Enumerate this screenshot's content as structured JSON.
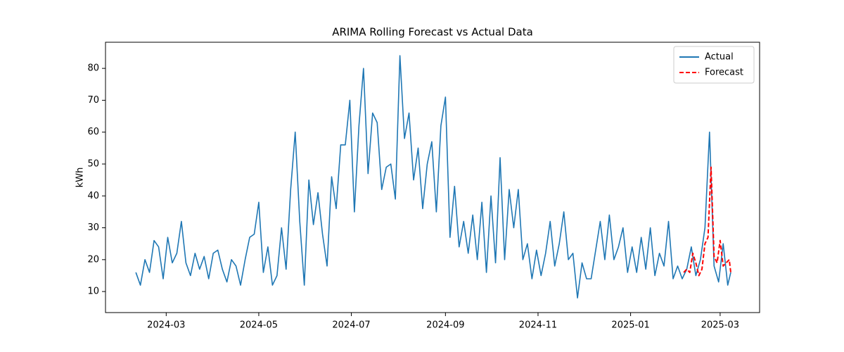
{
  "chart_data": {
    "type": "line",
    "title": "ARIMA Rolling Forecast vs Actual Data",
    "ylabel": "kWh",
    "xlim": [
      "2024-01-21",
      "2025-03-27"
    ],
    "ylim": [
      3.4,
      88.2
    ],
    "xticks": [
      {
        "value": "2024-03-01",
        "label": "2024-03"
      },
      {
        "value": "2024-05-01",
        "label": "2024-05"
      },
      {
        "value": "2024-07-01",
        "label": "2024-07"
      },
      {
        "value": "2024-09-01",
        "label": "2024-09"
      },
      {
        "value": "2024-11-01",
        "label": "2024-11"
      },
      {
        "value": "2025-01-01",
        "label": "2025-01"
      },
      {
        "value": "2025-03-01",
        "label": "2025-03"
      }
    ],
    "yticks": [
      10,
      20,
      30,
      40,
      50,
      60,
      70,
      80
    ],
    "grid": false,
    "legend": "upper right",
    "series": [
      {
        "name": "Actual",
        "color": "#1f77b4",
        "dash": "solid",
        "x": [
          "2024-02-10",
          "2024-02-13",
          "2024-02-16",
          "2024-02-19",
          "2024-02-22",
          "2024-02-25",
          "2024-02-28",
          "2024-03-02",
          "2024-03-05",
          "2024-03-08",
          "2024-03-11",
          "2024-03-14",
          "2024-03-17",
          "2024-03-20",
          "2024-03-23",
          "2024-03-26",
          "2024-03-29",
          "2024-04-01",
          "2024-04-04",
          "2024-04-07",
          "2024-04-10",
          "2024-04-13",
          "2024-04-16",
          "2024-04-19",
          "2024-04-22",
          "2024-04-25",
          "2024-04-28",
          "2024-05-01",
          "2024-05-04",
          "2024-05-07",
          "2024-05-10",
          "2024-05-13",
          "2024-05-16",
          "2024-05-19",
          "2024-05-22",
          "2024-05-25",
          "2024-05-28",
          "2024-05-31",
          "2024-06-03",
          "2024-06-06",
          "2024-06-09",
          "2024-06-12",
          "2024-06-15",
          "2024-06-18",
          "2024-06-21",
          "2024-06-24",
          "2024-06-27",
          "2024-06-30",
          "2024-07-03",
          "2024-07-06",
          "2024-07-09",
          "2024-07-12",
          "2024-07-15",
          "2024-07-18",
          "2024-07-21",
          "2024-07-24",
          "2024-07-27",
          "2024-07-30",
          "2024-08-02",
          "2024-08-05",
          "2024-08-08",
          "2024-08-11",
          "2024-08-14",
          "2024-08-17",
          "2024-08-20",
          "2024-08-23",
          "2024-08-26",
          "2024-08-29",
          "2024-09-01",
          "2024-09-04",
          "2024-09-07",
          "2024-09-10",
          "2024-09-13",
          "2024-09-16",
          "2024-09-19",
          "2024-09-22",
          "2024-09-25",
          "2024-09-28",
          "2024-10-01",
          "2024-10-04",
          "2024-10-07",
          "2024-10-10",
          "2024-10-13",
          "2024-10-16",
          "2024-10-19",
          "2024-10-22",
          "2024-10-25",
          "2024-10-28",
          "2024-10-31",
          "2024-11-03",
          "2024-11-06",
          "2024-11-09",
          "2024-11-12",
          "2024-11-15",
          "2024-11-18",
          "2024-11-21",
          "2024-11-24",
          "2024-11-27",
          "2024-11-30",
          "2024-12-03",
          "2024-12-06",
          "2024-12-09",
          "2024-12-12",
          "2024-12-15",
          "2024-12-18",
          "2024-12-21",
          "2024-12-24",
          "2024-12-27",
          "2024-12-30",
          "2025-01-02",
          "2025-01-05",
          "2025-01-08",
          "2025-01-11",
          "2025-01-14",
          "2025-01-17",
          "2025-01-20",
          "2025-01-23",
          "2025-01-26",
          "2025-01-29",
          "2025-02-01",
          "2025-02-04",
          "2025-02-07",
          "2025-02-10",
          "2025-02-13",
          "2025-02-16",
          "2025-02-19",
          "2025-02-22",
          "2025-02-25",
          "2025-02-28",
          "2025-03-03",
          "2025-03-06",
          "2025-03-08"
        ],
        "values": [
          16,
          12,
          20,
          16,
          26,
          24,
          14,
          27,
          19,
          22,
          32,
          19,
          15,
          22,
          17,
          21,
          14,
          22,
          23,
          17,
          13,
          20,
          18,
          12,
          20,
          27,
          28,
          38,
          16,
          24,
          12,
          15,
          30,
          17,
          42,
          60,
          32,
          12,
          45,
          31,
          41,
          28,
          18,
          46,
          36,
          56,
          56,
          70,
          35,
          62,
          80,
          47,
          66,
          63,
          42,
          49,
          50,
          39,
          84,
          58,
          66,
          45,
          55,
          36,
          50,
          57,
          35,
          62,
          71,
          27,
          43,
          24,
          32,
          22,
          34,
          20,
          38,
          16,
          40,
          19,
          52,
          20,
          42,
          30,
          42,
          20,
          25,
          14,
          23,
          15,
          22,
          32,
          18,
          25,
          35,
          20,
          22,
          8,
          19,
          14,
          14,
          23,
          32,
          20,
          34,
          20,
          24,
          30,
          16,
          24,
          16,
          27,
          17,
          30,
          15,
          22,
          18,
          32,
          14,
          18,
          14,
          17,
          24,
          15,
          20,
          30,
          60,
          18,
          13,
          25,
          12,
          16
        ]
      },
      {
        "name": "Forecast",
        "color": "#ff0000",
        "dash": "dashed",
        "x": [
          "2025-02-05",
          "2025-02-07",
          "2025-02-09",
          "2025-02-11",
          "2025-02-13",
          "2025-02-15",
          "2025-02-17",
          "2025-02-19",
          "2025-02-21",
          "2025-02-23",
          "2025-02-25",
          "2025-02-27",
          "2025-03-01",
          "2025-03-03",
          "2025-03-05",
          "2025-03-07",
          "2025-03-08"
        ],
        "values": [
          16,
          17,
          16,
          22,
          19,
          15,
          17,
          25,
          27,
          49,
          21,
          19,
          26,
          18,
          19,
          20,
          16
        ]
      }
    ]
  }
}
